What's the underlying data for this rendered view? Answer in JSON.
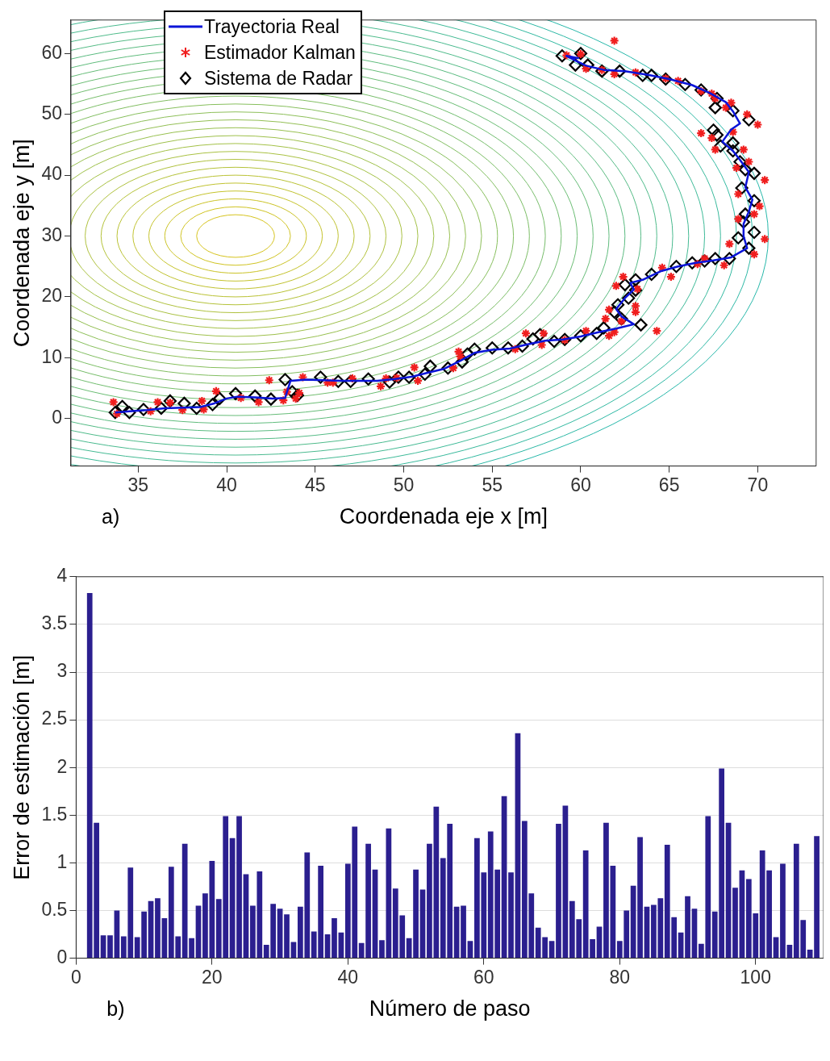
{
  "chart_data": [
    {
      "type": "line",
      "xlabel": "Coordenada eje x [m]",
      "ylabel": "Coordenada eje y [m]",
      "annotations": [
        "a)"
      ],
      "xlim": [
        31.2,
        73.3
      ],
      "ylim": [
        -7.8,
        65.5
      ],
      "xticks": [
        35,
        40,
        45,
        50,
        55,
        60,
        65,
        70
      ],
      "yticks": [
        0,
        10,
        20,
        30,
        40,
        50,
        60
      ],
      "grid": false,
      "legend": "top left",
      "series": [
        {
          "name": "Trayectoria Real",
          "type": "line",
          "color": "#0a14d8",
          "marker": "none",
          "line_style": "solid",
          "x": [
            33.7,
            34.5,
            35.5,
            36.5,
            37.5,
            38.5,
            39.3,
            40,
            40.6,
            41.6,
            42.6,
            43.3,
            43.6,
            44.5,
            45.5,
            46.5,
            47.5,
            48.5,
            49.5,
            50.5,
            51.3,
            52.3,
            53.2,
            54,
            55,
            56,
            57,
            58,
            59,
            60,
            61,
            62,
            63,
            62.3,
            62,
            62.5,
            63,
            62.8,
            63.5,
            64.5,
            65.5,
            66.5,
            67.5,
            68.5,
            69.4,
            69.2,
            69.2,
            69.5,
            69.7,
            69.3,
            69.5,
            69,
            68.6,
            68,
            68.5,
            69,
            68.6,
            68.2,
            67.3,
            66.3,
            65,
            63.8,
            62.5,
            61.3,
            60.3,
            59.8,
            59.2,
            59.9
          ],
          "values": [
            1,
            1.2,
            1.4,
            1.7,
            1.8,
            1.9,
            2.5,
            3.3,
            3.6,
            3.5,
            3.3,
            3.4,
            6.2,
            6.4,
            6.3,
            6.2,
            6.2,
            6.2,
            6.5,
            6.9,
            7.5,
            8.2,
            9.5,
            10.8,
            11.3,
            11.5,
            12.2,
            12.8,
            13,
            13.5,
            14.2,
            14.8,
            15.5,
            16.8,
            18,
            19.8,
            21.2,
            22.3,
            22.8,
            24.2,
            25,
            25.6,
            26,
            26.5,
            28,
            30,
            32,
            34,
            36,
            38,
            40.5,
            42.5,
            44,
            45.5,
            47.5,
            48.5,
            50.5,
            52,
            53.5,
            54.8,
            55.8,
            56.5,
            57.1,
            57.3,
            58,
            58.7,
            59.6,
            59.2
          ]
        },
        {
          "name": "Estimador Kalman",
          "type": "scatter",
          "color": "#f01e1e",
          "marker": "cross",
          "x": [
            33.6,
            33.8,
            35.7,
            36.1,
            36.8,
            37.5,
            38.6,
            38.7,
            39.4,
            40.8,
            41.8,
            42.4,
            43.2,
            43.4,
            43.9,
            44.1,
            44.3,
            45.7,
            46,
            47.1,
            48.7,
            49,
            49.6,
            50.8,
            50.6,
            52.8,
            53.2,
            53.1,
            56.3,
            57.8,
            56.9,
            57.9,
            59.1,
            61.6,
            60.3,
            61.9,
            62.3,
            61.4,
            63.1,
            61.6,
            63.1,
            64.3,
            62.4,
            63.2,
            62,
            64.6,
            65.1,
            66.6,
            67,
            68.1,
            69.8,
            68.4,
            70.4,
            68.9,
            69.8,
            70.1,
            68.9,
            70.4,
            68.8,
            69.5,
            69.2,
            67.6,
            67.4,
            68.6,
            66.8,
            70,
            69.4,
            68.2,
            68.5,
            67.6,
            67.4,
            66.8,
            65.5,
            64.8,
            63.1,
            61.9,
            61.2,
            60.3,
            60,
            59.2,
            61.9
          ],
          "values": [
            2.7,
            0.8,
            1.2,
            2.7,
            2.6,
            1.4,
            2.9,
            1.5,
            4.5,
            3.4,
            2.7,
            6.3,
            3,
            4.4,
            3.3,
            4.2,
            6.8,
            5.9,
            5.9,
            6.6,
            5.3,
            6.6,
            6.7,
            6.2,
            8.4,
            8.3,
            10.2,
            11,
            11.4,
            12.1,
            14,
            14,
            12.9,
            13.6,
            14.4,
            14.2,
            16,
            16.4,
            17.5,
            17.9,
            18.5,
            14.4,
            23.3,
            21.3,
            21.8,
            24.8,
            23.3,
            25.4,
            26.3,
            25.2,
            27,
            28.7,
            29.5,
            32.8,
            33.6,
            34.9,
            36.9,
            39.2,
            41.2,
            42.2,
            44.2,
            44.2,
            46.1,
            47.1,
            46.9,
            48.3,
            50,
            51.1,
            51.9,
            52.6,
            53.4,
            53.8,
            55.5,
            55.9,
            56.9,
            56.6,
            57.3,
            57.5,
            59.9,
            59.7,
            62.1
          ]
        },
        {
          "name": "Sistema de Radar",
          "type": "scatter",
          "color": "#000000",
          "marker": "diamond",
          "x": [
            33.7,
            34.1,
            34.5,
            35.3,
            36.3,
            36.8,
            37.6,
            38.3,
            39.2,
            39.6,
            40.5,
            41.6,
            42.5,
            43.3,
            43.7,
            44,
            45.3,
            46.3,
            47,
            48,
            49.2,
            49.7,
            50.3,
            51.2,
            51.5,
            52.5,
            53.3,
            53.6,
            54,
            55,
            55.9,
            56.7,
            57.3,
            57.7,
            58.5,
            59.1,
            60,
            60.9,
            61.3,
            63.4,
            62.3,
            61.9,
            62.1,
            62.7,
            63.1,
            62.5,
            63.1,
            64,
            65.4,
            66.3,
            67,
            67.6,
            68.4,
            69.5,
            68.9,
            69.8,
            69.2,
            69.3,
            69.8,
            69.1,
            69.8,
            69.3,
            69,
            68.6,
            67.9,
            68.6,
            67.7,
            67.5,
            69.5,
            68.6,
            67.6,
            67.7,
            66.8,
            65.9,
            64.8,
            64,
            63.5,
            62.2,
            61.2,
            60.4,
            59.7,
            60,
            58.95
          ],
          "values": [
            1.0,
            2,
            1.0,
            1.5,
            1.7,
            2.9,
            2.5,
            1.7,
            2.3,
            3.3,
            4.1,
            3.7,
            3.2,
            6.4,
            4.4,
            3.8,
            6.8,
            6.1,
            6.1,
            6.5,
            6,
            6.8,
            6.8,
            7.3,
            8.6,
            8.3,
            9.3,
            10.6,
            11.4,
            11.6,
            11.6,
            11.9,
            13.1,
            13.8,
            12.7,
            13,
            13.6,
            14,
            14.9,
            15.4,
            16.4,
            17.5,
            18.7,
            19.8,
            21.1,
            22,
            22.8,
            23.7,
            25,
            25.6,
            25.9,
            26.3,
            26.3,
            28,
            29.7,
            30.6,
            32.3,
            33.6,
            35.8,
            37.9,
            40.3,
            40.9,
            42.2,
            44,
            44.8,
            45.3,
            46.6,
            47.4,
            49.1,
            50.6,
            51.1,
            52.6,
            54,
            54.9,
            55.8,
            56.4,
            56.4,
            57.1,
            57.1,
            58.1,
            58.1,
            60,
            59.6
          ]
        }
      ]
    },
    {
      "type": "bar",
      "xlabel": "Número de paso",
      "ylabel": "Error de estimación [m]",
      "annotations": [
        "b)"
      ],
      "xlim": [
        0,
        110
      ],
      "ylim": [
        0,
        4
      ],
      "xticks": [
        0,
        20,
        40,
        60,
        80,
        100
      ],
      "yticks": [
        0,
        0.5,
        1,
        1.5,
        2,
        2.5,
        3,
        3.5,
        4
      ],
      "grid": "y",
      "series": [
        {
          "type": "bar",
          "color": "#2b1f8f",
          "x": [
            2,
            3,
            4,
            5,
            6,
            7,
            8,
            9,
            10,
            11,
            12,
            13,
            14,
            15,
            16,
            17,
            18,
            19,
            20,
            21,
            22,
            23,
            24,
            25,
            26,
            27,
            28,
            29,
            30,
            31,
            32,
            33,
            34,
            35,
            36,
            37,
            38,
            39,
            40,
            41,
            42,
            43,
            44,
            45,
            46,
            47,
            48,
            49,
            50,
            51,
            52,
            53,
            54,
            55,
            56,
            57,
            58,
            59,
            60,
            61,
            62,
            63,
            64,
            65,
            66,
            67,
            68,
            69,
            70,
            71,
            72,
            73,
            74,
            75,
            76,
            77,
            78,
            79,
            80,
            81,
            82,
            83,
            84,
            85,
            86,
            87,
            88,
            89,
            90,
            91,
            92,
            93,
            94,
            95,
            96,
            97,
            98,
            99,
            100,
            101,
            102,
            103,
            104,
            105,
            106,
            107,
            108,
            109
          ],
          "values": [
            3.83,
            1.42,
            0.24,
            0.24,
            0.5,
            0.23,
            0.95,
            0.22,
            0.49,
            0.6,
            0.63,
            0.42,
            0.96,
            0.23,
            1.2,
            0.21,
            0.55,
            0.68,
            1.02,
            0.62,
            1.49,
            1.26,
            1.49,
            0.88,
            0.55,
            0.91,
            0.14,
            0.57,
            0.52,
            0.46,
            0.17,
            0.54,
            1.11,
            0.28,
            0.97,
            0.25,
            0.42,
            0.27,
            0.99,
            1.38,
            0.16,
            1.2,
            0.93,
            0.19,
            1.36,
            0.73,
            0.45,
            0.21,
            0.93,
            0.72,
            1.2,
            1.59,
            1.05,
            1.41,
            0.54,
            0.55,
            0.18,
            1.26,
            0.9,
            1.33,
            0.93,
            1.7,
            0.9,
            2.36,
            1.44,
            0.68,
            0.32,
            0.22,
            0.18,
            1.41,
            1.6,
            0.6,
            0.41,
            1.13,
            0.2,
            0.33,
            1.42,
            0.97,
            0.18,
            0.5,
            0.76,
            1.27,
            0.54,
            0.56,
            0.63,
            1.19,
            0.43,
            0.27,
            0.65,
            0.52,
            0.15,
            1.49,
            0.49,
            1.99,
            1.42,
            0.74,
            0.92,
            0.83,
            0.47,
            1.13,
            0.92,
            0.22,
            0.99,
            0.14,
            1.2,
            0.4,
            0.09,
            1.28
          ]
        }
      ]
    }
  ]
}
